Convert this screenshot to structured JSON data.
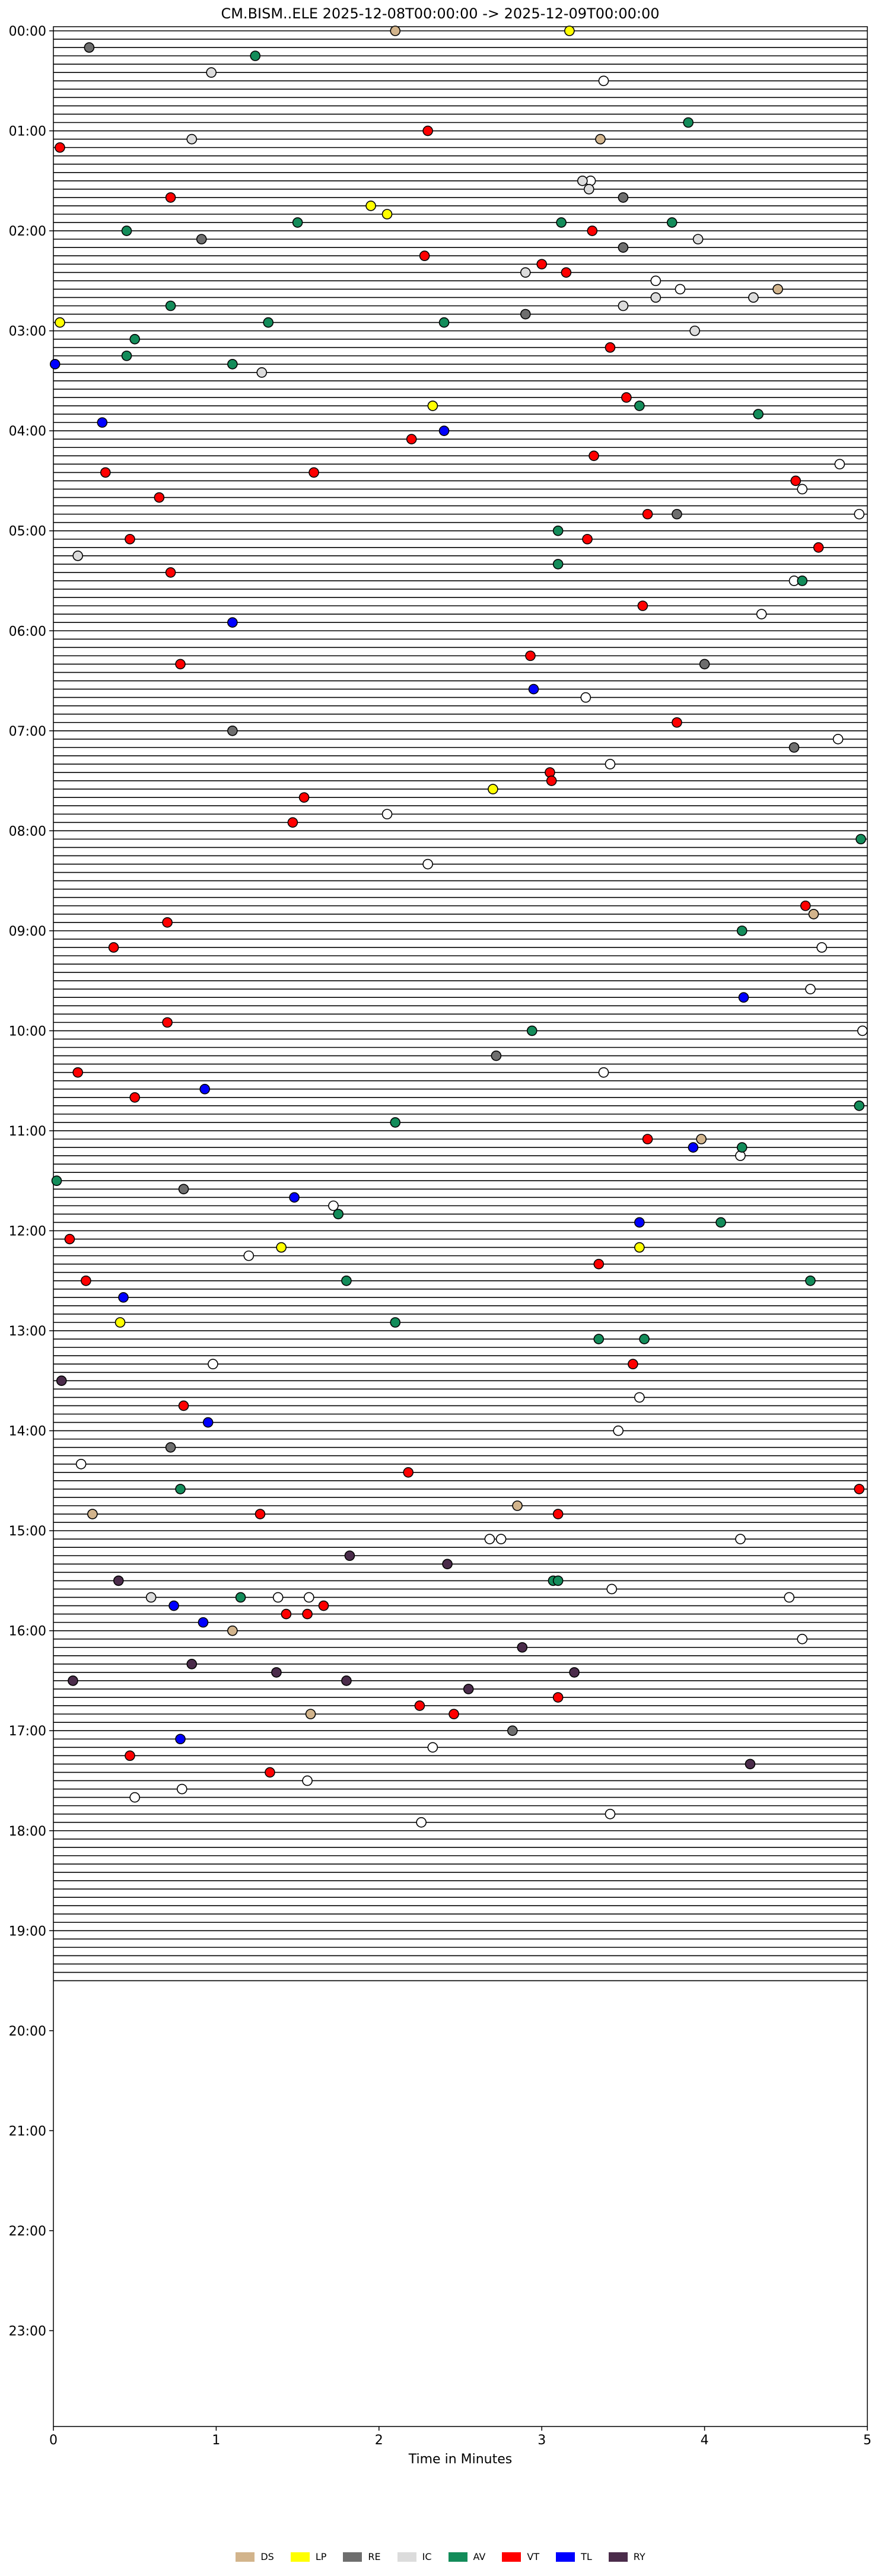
{
  "chart_data": {
    "type": "scatter",
    "title": "CM.BISM..ELE  2025-12-08T00:00:00 -> 2025-12-09T00:00:00",
    "xlabel": "Time in Minutes",
    "ylabel": "",
    "xlim": [
      0,
      5
    ],
    "x_ticks": [
      "0",
      "1",
      "2",
      "3",
      "4",
      "5"
    ],
    "ylim_minutes": [
      0,
      1440
    ],
    "rows_per_hour": 12,
    "row_minutes": 5,
    "y_ticks": [
      "00:00",
      "01:00",
      "02:00",
      "03:00",
      "04:00",
      "05:00",
      "06:00",
      "07:00",
      "08:00",
      "09:00",
      "10:00",
      "11:00",
      "12:00",
      "13:00",
      "14:00",
      "15:00",
      "16:00",
      "17:00",
      "18:00",
      "19:00",
      "20:00",
      "21:00",
      "22:00",
      "23:00"
    ],
    "trace_rows": 235,
    "legend": [
      {
        "label": "DS",
        "color": "#d2b48c"
      },
      {
        "label": "LP",
        "color": "#ffff00"
      },
      {
        "label": "RE",
        "color": "#6e6e6e"
      },
      {
        "label": "IC",
        "color": "#dcdcdc"
      },
      {
        "label": "AV",
        "color": "#138c5a"
      },
      {
        "label": "VT",
        "color": "#ff0000"
      },
      {
        "label": "TL",
        "color": "#0000ff"
      },
      {
        "label": "RY",
        "color": "#4b2c4b"
      }
    ],
    "point_color_default": "#ffffff",
    "events": [
      {
        "row": 0,
        "x": 2.1,
        "type": "DS"
      },
      {
        "row": 0,
        "x": 3.17,
        "type": "LP"
      },
      {
        "row": 2,
        "x": 0.22,
        "type": "RE"
      },
      {
        "row": 3,
        "x": 1.24,
        "type": "AV"
      },
      {
        "row": 5,
        "x": 0.97,
        "type": "IC"
      },
      {
        "row": 11,
        "x": 3.9,
        "type": "AV"
      },
      {
        "row": 12,
        "x": 2.3,
        "type": "VT"
      },
      {
        "row": 13,
        "x": 3.36,
        "type": "DS"
      },
      {
        "row": 13,
        "x": 0.85,
        "type": "IC"
      },
      {
        "row": 14,
        "x": 0.04,
        "type": "VT"
      },
      {
        "row": 18,
        "x": 3.25,
        "type": "IC"
      },
      {
        "row": 19,
        "x": 3.29,
        "type": "IC"
      },
      {
        "row": 20,
        "x": 0.72,
        "type": "VT"
      },
      {
        "row": 20,
        "x": 3.5,
        "type": "RE"
      },
      {
        "row": 21,
        "x": 1.95,
        "type": "LP"
      },
      {
        "row": 22,
        "x": 2.05,
        "type": "LP"
      },
      {
        "row": 23,
        "x": 1.5,
        "type": "AV"
      },
      {
        "row": 23,
        "x": 3.12,
        "type": "AV"
      },
      {
        "row": 23,
        "x": 3.8,
        "type": "AV"
      },
      {
        "row": 24,
        "x": 0.45,
        "type": "AV"
      },
      {
        "row": 24,
        "x": 3.31,
        "type": "VT"
      },
      {
        "row": 25,
        "x": 0.91,
        "type": "RE"
      },
      {
        "row": 25,
        "x": 3.96,
        "type": "IC"
      },
      {
        "row": 26,
        "x": 3.5,
        "type": "RE"
      },
      {
        "row": 27,
        "x": 2.28,
        "type": "VT"
      },
      {
        "row": 28,
        "x": 3.0,
        "type": "VT"
      },
      {
        "row": 29,
        "x": 3.15,
        "type": "VT"
      },
      {
        "row": 29,
        "x": 2.9,
        "type": "IC"
      },
      {
        "row": 31,
        "x": 4.45,
        "type": "DS"
      },
      {
        "row": 32,
        "x": 3.7,
        "type": "IC"
      },
      {
        "row": 32,
        "x": 4.3,
        "type": "IC"
      },
      {
        "row": 33,
        "x": 3.5,
        "type": "IC"
      },
      {
        "row": 33,
        "x": 0.72,
        "type": "AV"
      },
      {
        "row": 34,
        "x": 2.9,
        "type": "RE"
      },
      {
        "row": 35,
        "x": 0.04,
        "type": "LP"
      },
      {
        "row": 35,
        "x": 1.32,
        "type": "AV"
      },
      {
        "row": 35,
        "x": 2.4,
        "type": "AV"
      },
      {
        "row": 36,
        "x": 3.94,
        "type": "IC"
      },
      {
        "row": 37,
        "x": 0.5,
        "type": "AV"
      },
      {
        "row": 38,
        "x": 3.42,
        "type": "VT"
      },
      {
        "row": 39,
        "x": 0.45,
        "type": "AV"
      },
      {
        "row": 40,
        "x": 1.1,
        "type": "AV"
      },
      {
        "row": 40,
        "x": 0.01,
        "type": "TL"
      },
      {
        "row": 41,
        "x": 1.28,
        "type": "IC"
      },
      {
        "row": 44,
        "x": 3.52,
        "type": "VT"
      },
      {
        "row": 45,
        "x": 2.33,
        "type": "LP"
      },
      {
        "row": 45,
        "x": 3.6,
        "type": "AV"
      },
      {
        "row": 46,
        "x": 4.33,
        "type": "AV"
      },
      {
        "row": 47,
        "x": 0.3,
        "type": "TL"
      },
      {
        "row": 48,
        "x": 2.4,
        "type": "TL"
      },
      {
        "row": 49,
        "x": 2.2,
        "type": "VT"
      },
      {
        "row": 51,
        "x": 3.32,
        "type": "VT"
      },
      {
        "row": 53,
        "x": 1.6,
        "type": "VT"
      },
      {
        "row": 53,
        "x": 0.32,
        "type": "VT"
      },
      {
        "row": 54,
        "x": 4.56,
        "type": "VT"
      },
      {
        "row": 56,
        "x": 0.65,
        "type": "VT"
      },
      {
        "row": 58,
        "x": 3.65,
        "type": "VT"
      },
      {
        "row": 58,
        "x": 3.83,
        "type": "RE"
      },
      {
        "row": 60,
        "x": 3.1,
        "type": "AV"
      },
      {
        "row": 61,
        "x": 0.47,
        "type": "VT"
      },
      {
        "row": 61,
        "x": 3.28,
        "type": "VT"
      },
      {
        "row": 62,
        "x": 4.7,
        "type": "VT"
      },
      {
        "row": 63,
        "x": 0.15,
        "type": "IC"
      },
      {
        "row": 64,
        "x": 3.1,
        "type": "AV"
      },
      {
        "row": 65,
        "x": 0.72,
        "type": "VT"
      },
      {
        "row": 66,
        "x": 4.6,
        "type": "AV"
      },
      {
        "row": 69,
        "x": 3.62,
        "type": "VT"
      },
      {
        "row": 71,
        "x": 1.1,
        "type": "TL"
      },
      {
        "row": 75,
        "x": 2.93,
        "type": "VT"
      },
      {
        "row": 76,
        "x": 0.78,
        "type": "VT"
      },
      {
        "row": 76,
        "x": 4.0,
        "type": "RE"
      },
      {
        "row": 79,
        "x": 2.95,
        "type": "TL"
      },
      {
        "row": 83,
        "x": 3.83,
        "type": "VT"
      },
      {
        "row": 84,
        "x": 1.1,
        "type": "RE"
      },
      {
        "row": 86,
        "x": 4.55,
        "type": "RE"
      },
      {
        "row": 89,
        "x": 3.05,
        "type": "VT"
      },
      {
        "row": 90,
        "x": 3.06,
        "type": "VT"
      },
      {
        "row": 91,
        "x": 2.7,
        "type": "LP"
      },
      {
        "row": 92,
        "x": 1.54,
        "type": "VT"
      },
      {
        "row": 95,
        "x": 1.47,
        "type": "VT"
      },
      {
        "row": 97,
        "x": 4.96,
        "type": "AV"
      },
      {
        "row": 105,
        "x": 4.62,
        "type": "VT"
      },
      {
        "row": 106,
        "x": 4.67,
        "type": "DS"
      },
      {
        "row": 107,
        "x": 0.7,
        "type": "VT"
      },
      {
        "row": 108,
        "x": 4.23,
        "type": "AV"
      },
      {
        "row": 110,
        "x": 0.37,
        "type": "VT"
      },
      {
        "row": 116,
        "x": 4.24,
        "type": "TL"
      },
      {
        "row": 119,
        "x": 0.7,
        "type": "VT"
      },
      {
        "row": 120,
        "x": 2.94,
        "type": "AV"
      },
      {
        "row": 123,
        "x": 2.72,
        "type": "RE"
      },
      {
        "row": 125,
        "x": 0.15,
        "type": "VT"
      },
      {
        "row": 127,
        "x": 0.93,
        "type": "TL"
      },
      {
        "row": 128,
        "x": 0.5,
        "type": "VT"
      },
      {
        "row": 129,
        "x": 4.95,
        "type": "AV"
      },
      {
        "row": 131,
        "x": 2.1,
        "type": "AV"
      },
      {
        "row": 133,
        "x": 3.65,
        "type": "VT"
      },
      {
        "row": 133,
        "x": 3.98,
        "type": "DS"
      },
      {
        "row": 134,
        "x": 4.23,
        "type": "AV"
      },
      {
        "row": 134,
        "x": 3.93,
        "type": "TL"
      },
      {
        "row": 138,
        "x": 0.02,
        "type": "AV"
      },
      {
        "row": 139,
        "x": 0.8,
        "type": "RE"
      },
      {
        "row": 140,
        "x": 1.48,
        "type": "TL"
      },
      {
        "row": 142,
        "x": 1.75,
        "type": "AV"
      },
      {
        "row": 143,
        "x": 3.6,
        "type": "TL"
      },
      {
        "row": 143,
        "x": 4.1,
        "type": "AV"
      },
      {
        "row": 145,
        "x": 0.1,
        "type": "VT"
      },
      {
        "row": 146,
        "x": 1.4,
        "type": "LP"
      },
      {
        "row": 146,
        "x": 3.6,
        "type": "LP"
      },
      {
        "row": 148,
        "x": 3.35,
        "type": "VT"
      },
      {
        "row": 150,
        "x": 0.2,
        "type": "VT"
      },
      {
        "row": 150,
        "x": 1.8,
        "type": "AV"
      },
      {
        "row": 150,
        "x": 4.65,
        "type": "AV"
      },
      {
        "row": 152,
        "x": 0.43,
        "type": "TL"
      },
      {
        "row": 155,
        "x": 0.41,
        "type": "LP"
      },
      {
        "row": 155,
        "x": 2.1,
        "type": "AV"
      },
      {
        "row": 157,
        "x": 3.35,
        "type": "AV"
      },
      {
        "row": 157,
        "x": 3.63,
        "type": "AV"
      },
      {
        "row": 160,
        "x": 3.56,
        "type": "VT"
      },
      {
        "row": 162,
        "x": 0.05,
        "type": "RY"
      },
      {
        "row": 165,
        "x": 0.8,
        "type": "VT"
      },
      {
        "row": 167,
        "x": 0.95,
        "type": "TL"
      },
      {
        "row": 170,
        "x": 0.72,
        "type": "RE"
      },
      {
        "row": 173,
        "x": 2.18,
        "type": "VT"
      },
      {
        "row": 175,
        "x": 4.95,
        "type": "VT"
      },
      {
        "row": 175,
        "x": 0.78,
        "type": "AV"
      },
      {
        "row": 177,
        "x": 2.85,
        "type": "DS"
      },
      {
        "row": 178,
        "x": 0.24,
        "type": "DS"
      },
      {
        "row": 178,
        "x": 1.27,
        "type": "VT"
      },
      {
        "row": 178,
        "x": 3.1,
        "type": "VT"
      },
      {
        "row": 183,
        "x": 1.82,
        "type": "RY"
      },
      {
        "row": 184,
        "x": 2.42,
        "type": "RY"
      },
      {
        "row": 186,
        "x": 0.4,
        "type": "RY"
      },
      {
        "row": 186,
        "x": 3.07,
        "type": "AV"
      },
      {
        "row": 188,
        "x": 0.6,
        "type": "IC"
      },
      {
        "row": 188,
        "x": 1.15,
        "type": "AV"
      },
      {
        "row": 189,
        "x": 0.74,
        "type": "TL"
      },
      {
        "row": 190,
        "x": 1.43,
        "type": "VT"
      },
      {
        "row": 190,
        "x": 1.56,
        "type": "VT"
      },
      {
        "row": 189,
        "x": 1.66,
        "type": "VT"
      },
      {
        "row": 191,
        "x": 0.92,
        "type": "TL"
      },
      {
        "row": 192,
        "x": 1.1,
        "type": "DS"
      },
      {
        "row": 194,
        "x": 2.88,
        "type": "RY"
      },
      {
        "row": 196,
        "x": 0.85,
        "type": "RY"
      },
      {
        "row": 197,
        "x": 1.37,
        "type": "RY"
      },
      {
        "row": 197,
        "x": 3.2,
        "type": "RY"
      },
      {
        "row": 198,
        "x": 0.12,
        "type": "RY"
      },
      {
        "row": 199,
        "x": 2.55,
        "type": "RY"
      },
      {
        "row": 200,
        "x": 3.1,
        "type": "VT"
      },
      {
        "row": 201,
        "x": 2.25,
        "type": "VT"
      },
      {
        "row": 202,
        "x": 2.46,
        "type": "VT"
      },
      {
        "row": 202,
        "x": 1.58,
        "type": "DS"
      },
      {
        "row": 204,
        "x": 2.82,
        "type": "RE"
      },
      {
        "row": 205,
        "x": 0.78,
        "type": "TL"
      },
      {
        "row": 207,
        "x": 0.47,
        "type": "VT"
      },
      {
        "row": 208,
        "x": 4.28,
        "type": "RY"
      },
      {
        "row": 209,
        "x": 1.33,
        "type": "VT"
      },
      {
        "row": 198,
        "x": 1.8,
        "type": "RY"
      },
      {
        "row": 186,
        "x": 3.1,
        "type": "AV"
      }
    ],
    "ic_events": [
      {
        "row": 6,
        "x": 3.38
      },
      {
        "row": 18,
        "x": 3.3
      },
      {
        "row": 30,
        "x": 3.7
      },
      {
        "row": 31,
        "x": 3.85
      },
      {
        "row": 52,
        "x": 4.83
      },
      {
        "row": 55,
        "x": 4.6
      },
      {
        "row": 58,
        "x": 4.95
      },
      {
        "row": 66,
        "x": 4.55
      },
      {
        "row": 70,
        "x": 4.35
      },
      {
        "row": 80,
        "x": 3.27
      },
      {
        "row": 85,
        "x": 4.82
      },
      {
        "row": 88,
        "x": 3.42
      },
      {
        "row": 94,
        "x": 2.05
      },
      {
        "row": 100,
        "x": 2.3
      },
      {
        "row": 110,
        "x": 4.72
      },
      {
        "row": 115,
        "x": 4.65
      },
      {
        "row": 120,
        "x": 4.97
      },
      {
        "row": 125,
        "x": 3.38
      },
      {
        "row": 135,
        "x": 4.22
      },
      {
        "row": 141,
        "x": 1.72
      },
      {
        "row": 147,
        "x": 1.2
      },
      {
        "row": 160,
        "x": 0.98
      },
      {
        "row": 164,
        "x": 3.6
      },
      {
        "row": 168,
        "x": 3.47
      },
      {
        "row": 172,
        "x": 0.17
      },
      {
        "row": 181,
        "x": 4.22
      },
      {
        "row": 181,
        "x": 2.75
      },
      {
        "row": 188,
        "x": 1.38
      },
      {
        "row": 188,
        "x": 1.57
      },
      {
        "row": 187,
        "x": 3.43
      },
      {
        "row": 188,
        "x": 4.52
      },
      {
        "row": 193,
        "x": 4.6
      },
      {
        "row": 206,
        "x": 2.33
      },
      {
        "row": 210,
        "x": 1.56
      },
      {
        "row": 211,
        "x": 0.79
      },
      {
        "row": 212,
        "x": 0.5
      },
      {
        "row": 214,
        "x": 3.42
      },
      {
        "row": 215,
        "x": 2.26
      },
      {
        "row": 181,
        "x": 2.68
      }
    ]
  }
}
